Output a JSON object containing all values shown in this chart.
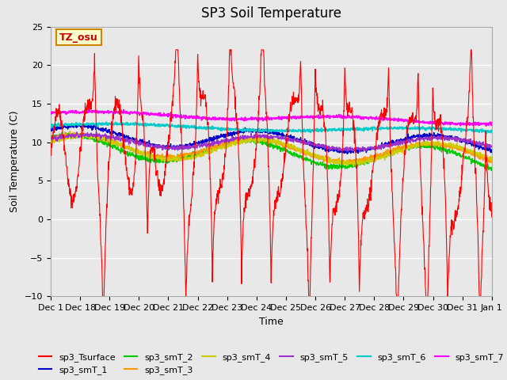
{
  "title": "SP3 Soil Temperature",
  "ylabel": "Soil Temperature (C)",
  "xlabel": "Time",
  "annotation_text": "TZ_osu",
  "annotation_color": "#cc0000",
  "annotation_bg": "#ffffcc",
  "annotation_border": "#cc8800",
  "xlim_start": 0,
  "xlim_end": 16,
  "ylim": [
    -10,
    25
  ],
  "yticks": [
    -10,
    -5,
    0,
    5,
    10,
    15,
    20,
    25
  ],
  "bg_color": "#e8e8e8",
  "axes_bg": "#e8e8e8",
  "grid_color": "white",
  "series_colors": {
    "sp3_Tsurface": "#ff0000",
    "sp3_smT_1": "#0000cc",
    "sp3_smT_2": "#00cc00",
    "sp3_smT_3": "#ff9900",
    "sp3_smT_4": "#cccc00",
    "sp3_smT_5": "#9933cc",
    "sp3_smT_6": "#00cccc",
    "sp3_smT_7": "#ff00ff"
  },
  "xtick_labels": [
    "Dec 1",
    "Dec 18",
    "Dec 19",
    "Dec 20",
    "Dec 21",
    "Dec 22",
    "Dec 23",
    "Dec 24",
    "Dec 25",
    "Dec 26",
    "Dec 27",
    "Dec 28",
    "Dec 29",
    "Dec 30",
    "Dec 31",
    "Jan 1"
  ],
  "xtick_positions": [
    0,
    1,
    2,
    3,
    4,
    5,
    6,
    7,
    8,
    9,
    10,
    11,
    12,
    13,
    14,
    15
  ]
}
